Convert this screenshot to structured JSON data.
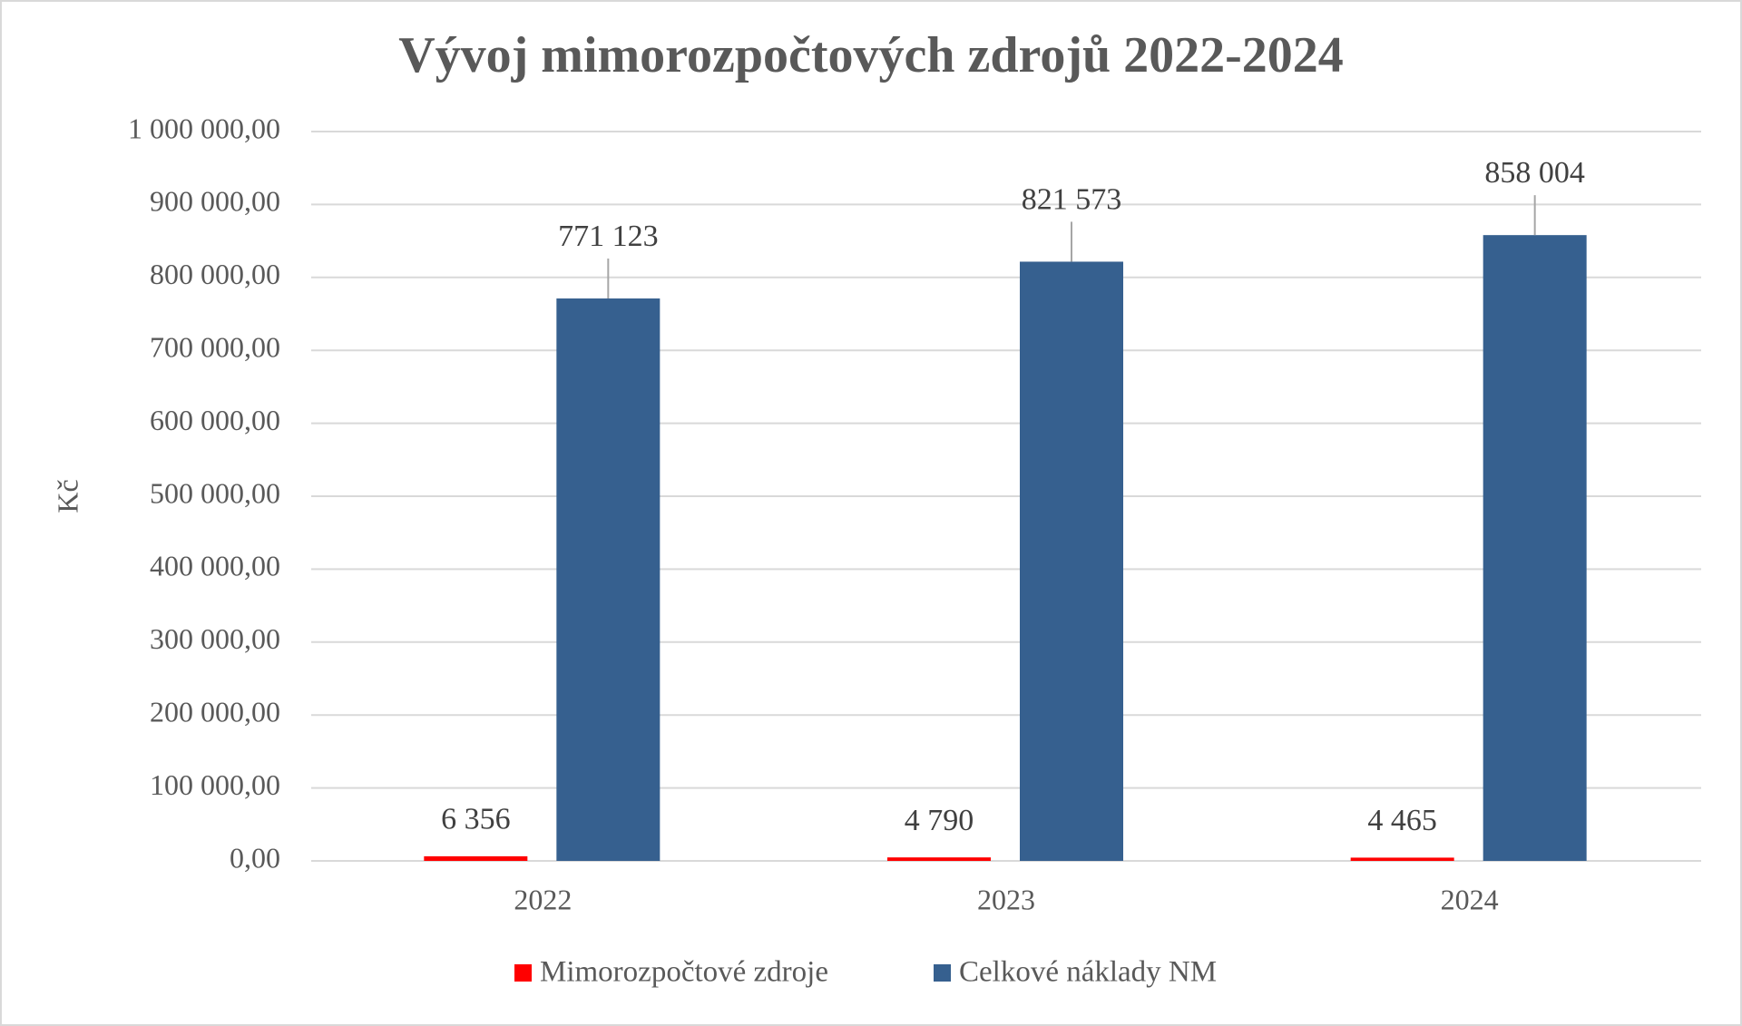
{
  "chart_data": {
    "type": "bar",
    "title": "Vývoj mimorozpočtových zdrojů 2022-2024",
    "y_label": "Kč",
    "categories": [
      "2022",
      "2023",
      "2024"
    ],
    "series": [
      {
        "name": "Mimorozpočtové zdroje",
        "color": "#ff0000",
        "values": [
          6356,
          4790,
          4465
        ],
        "value_labels": [
          "6 356",
          "4 790",
          "4 465"
        ]
      },
      {
        "name": "Celkové náklady NM",
        "color": "#36608f",
        "values": [
          771123,
          821573,
          858004
        ],
        "value_labels": [
          "771 123",
          "821 573",
          "858 004"
        ]
      }
    ],
    "ylim": [
      0,
      1000000
    ],
    "yticks": [
      {
        "value": 0,
        "label": "0,00"
      },
      {
        "value": 100000,
        "label": "100 000,00"
      },
      {
        "value": 200000,
        "label": "200 000,00"
      },
      {
        "value": 300000,
        "label": "300 000,00"
      },
      {
        "value": 400000,
        "label": "400 000,00"
      },
      {
        "value": 500000,
        "label": "500 000,00"
      },
      {
        "value": 600000,
        "label": "600 000,00"
      },
      {
        "value": 700000,
        "label": "700 000,00"
      },
      {
        "value": 800000,
        "label": "800 000,00"
      },
      {
        "value": 900000,
        "label": "900 000,00"
      },
      {
        "value": 1000000,
        "label": "1 000 000,00"
      }
    ],
    "grid": true
  }
}
